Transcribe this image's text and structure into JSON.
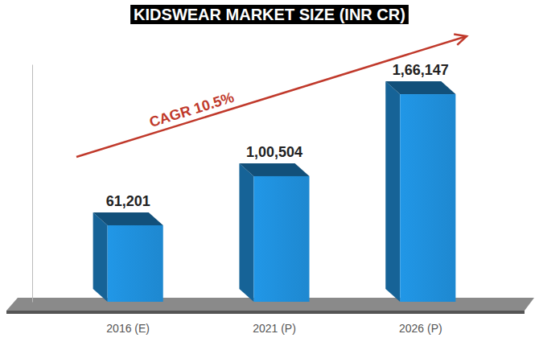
{
  "chart_data": {
    "type": "bar",
    "title": "KIDSWEAR MARKET SIZE (INR CR)",
    "categories": [
      "2016 (E)",
      "2021 (P)",
      "2026 (P)"
    ],
    "values": [
      61201,
      100504,
      166147
    ],
    "value_labels": [
      "61,201",
      "1,00,504",
      "1,66,147"
    ],
    "data_labels": true,
    "color": "#1e88d0",
    "ylim": [
      0,
      190000
    ],
    "yticks": [],
    "tick_labels": "x",
    "annotations": [
      "CAGR 10.5%"
    ]
  }
}
